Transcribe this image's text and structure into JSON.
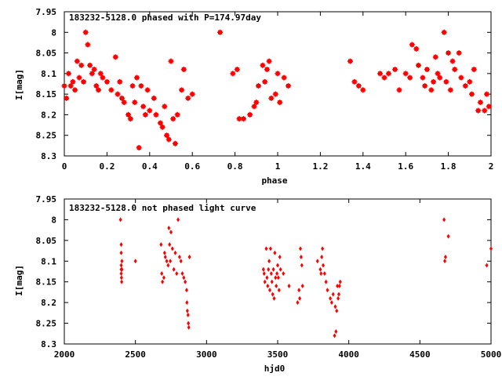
{
  "chart_data": [
    {
      "type": "scatter",
      "title": "183232-5128.0 phased with P=174.97day",
      "xlabel": "phase",
      "ylabel": "I[mag]",
      "xlim": [
        0,
        2
      ],
      "ylim": [
        8.3,
        7.95
      ],
      "y_inverted": true,
      "grid": false,
      "x_ticks": [
        "0",
        "0.2",
        "0.4",
        "0.6",
        "0.8",
        "1",
        "1.2",
        "1.4",
        "1.6",
        "1.8",
        "2"
      ],
      "y_ticks": [
        "7.95",
        "8",
        "8.05",
        "8.1",
        "8.15",
        "8.2",
        "8.25",
        "8.3"
      ],
      "marker_color": "#ff0000",
      "series": [
        {
          "x": [
            0.0,
            0.01,
            0.02,
            0.03,
            0.04,
            0.05,
            0.06,
            0.07,
            0.08,
            0.09,
            0.1,
            0.11,
            0.12,
            0.13,
            0.14,
            0.15,
            0.16,
            0.17,
            0.18,
            0.2,
            0.22,
            0.24,
            0.25,
            0.26,
            0.27,
            0.28,
            0.3,
            0.31,
            0.32,
            0.33,
            0.34,
            0.35,
            0.36,
            0.37,
            0.38,
            0.39,
            0.4,
            0.42,
            0.43,
            0.45,
            0.46,
            0.47,
            0.48,
            0.49,
            0.5,
            0.51,
            0.52,
            0.53,
            0.55,
            0.56,
            0.58,
            0.6,
            0.73,
            0.79,
            0.81,
            0.82,
            0.84,
            0.87,
            0.89,
            0.9,
            0.91,
            0.93,
            0.94,
            0.95,
            0.96,
            0.97,
            0.99,
            1.0,
            1.01,
            1.03,
            1.05,
            1.34,
            1.36,
            1.38,
            1.4,
            1.48,
            1.5,
            1.52,
            1.55,
            1.57,
            1.6,
            1.62,
            1.63,
            1.65,
            1.66,
            1.68,
            1.69,
            1.7,
            1.72,
            1.73,
            1.74,
            1.75,
            1.76,
            1.78,
            1.79,
            1.8,
            1.81,
            1.82,
            1.83,
            1.85,
            1.86,
            1.88,
            1.9,
            1.91,
            1.92,
            1.94,
            1.95,
            1.97,
            1.98,
            1.99
          ],
          "y": [
            8.13,
            8.16,
            8.1,
            8.13,
            8.12,
            8.14,
            8.07,
            8.11,
            8.08,
            8.12,
            8.0,
            8.03,
            8.08,
            8.1,
            8.09,
            8.13,
            8.14,
            8.1,
            8.11,
            8.12,
            8.14,
            8.06,
            8.15,
            8.12,
            8.16,
            8.17,
            8.2,
            8.21,
            8.13,
            8.17,
            8.11,
            8.28,
            8.13,
            8.18,
            8.2,
            8.14,
            8.19,
            8.16,
            8.2,
            8.22,
            8.23,
            8.18,
            8.25,
            8.26,
            8.07,
            8.21,
            8.27,
            8.2,
            8.14,
            8.09,
            8.16,
            8.15,
            8.0,
            8.1,
            8.09,
            8.21,
            8.21,
            8.2,
            8.18,
            8.17,
            8.13,
            8.08,
            8.12,
            8.09,
            8.07,
            8.16,
            8.15,
            8.1,
            8.17,
            8.11,
            8.13,
            8.07,
            8.12,
            8.13,
            8.14,
            8.1,
            8.11,
            8.1,
            8.09,
            8.14,
            8.1,
            8.11,
            8.03,
            8.04,
            8.08,
            8.11,
            8.13,
            8.09,
            8.14,
            8.12,
            8.06,
            8.1,
            8.11,
            8.0,
            8.12,
            8.05,
            8.14,
            8.07,
            8.09,
            8.05,
            8.11,
            8.13,
            8.12,
            8.15,
            8.09,
            8.19,
            8.17,
            8.19,
            8.15,
            8.18
          ]
        }
      ]
    },
    {
      "type": "scatter",
      "title": "183232-5128.0 not phased light curve",
      "xlabel": "hjd0",
      "ylabel": "I[mag]",
      "xlim": [
        2000,
        5000
      ],
      "ylim": [
        8.3,
        7.95
      ],
      "y_inverted": true,
      "grid": false,
      "x_ticks": [
        "2000",
        "2500",
        "3000",
        "3500",
        "4000",
        "4500",
        "5000"
      ],
      "y_ticks": [
        "7.95",
        "8",
        "8.05",
        "8.1",
        "8.15",
        "8.2",
        "8.25",
        "8.3"
      ],
      "marker_color": "#ff0000",
      "series": [
        {
          "x": [
            2395,
            2400,
            2400,
            2400,
            2400,
            2400,
            2402,
            2403,
            2405,
            2405,
            2500,
            2680,
            2685,
            2690,
            2700,
            2705,
            2710,
            2720,
            2730,
            2735,
            2740,
            2745,
            2750,
            2760,
            2770,
            2780,
            2790,
            2800,
            2810,
            2820,
            2830,
            2840,
            2850,
            2860,
            2862,
            2865,
            2870,
            2872,
            2875,
            2880,
            3400,
            3405,
            3410,
            3420,
            3425,
            3430,
            3435,
            3440,
            3445,
            3450,
            3455,
            3460,
            3465,
            3470,
            3475,
            3480,
            3485,
            3490,
            3495,
            3500,
            3505,
            3510,
            3515,
            3520,
            3540,
            3580,
            3640,
            3650,
            3655,
            3660,
            3665,
            3670,
            3675,
            3780,
            3800,
            3805,
            3810,
            3815,
            3820,
            3830,
            3840,
            3850,
            3870,
            3880,
            3890,
            3900,
            3905,
            3910,
            3915,
            3920,
            3925,
            3930,
            3935,
            3940,
            4670,
            4675,
            4680,
            4700,
            4970,
            5000
          ],
          "y": [
            8.0,
            8.06,
            8.08,
            8.11,
            8.12,
            8.13,
            8.14,
            8.15,
            8.12,
            8.1,
            8.1,
            8.06,
            8.13,
            8.15,
            8.14,
            8.08,
            8.09,
            8.1,
            8.11,
            8.02,
            8.06,
            8.1,
            8.03,
            8.07,
            8.12,
            8.08,
            8.13,
            8.0,
            8.09,
            8.1,
            8.13,
            8.14,
            8.15,
            8.17,
            8.2,
            8.22,
            8.23,
            8.25,
            8.26,
            8.09,
            8.12,
            8.13,
            8.15,
            8.07,
            8.14,
            8.16,
            8.12,
            8.1,
            8.17,
            8.07,
            8.13,
            8.15,
            8.18,
            8.12,
            8.19,
            8.08,
            8.14,
            8.16,
            8.13,
            8.11,
            8.14,
            8.17,
            8.09,
            8.12,
            8.13,
            8.16,
            8.2,
            8.17,
            8.19,
            8.07,
            8.09,
            8.11,
            8.16,
            8.1,
            8.12,
            8.13,
            8.09,
            8.07,
            8.11,
            8.13,
            8.15,
            8.17,
            8.19,
            8.2,
            8.18,
            8.28,
            8.21,
            8.27,
            8.22,
            8.16,
            8.19,
            8.18,
            8.16,
            8.15,
            8.0,
            8.1,
            8.09,
            8.04,
            8.11,
            8.07
          ]
        }
      ]
    }
  ]
}
